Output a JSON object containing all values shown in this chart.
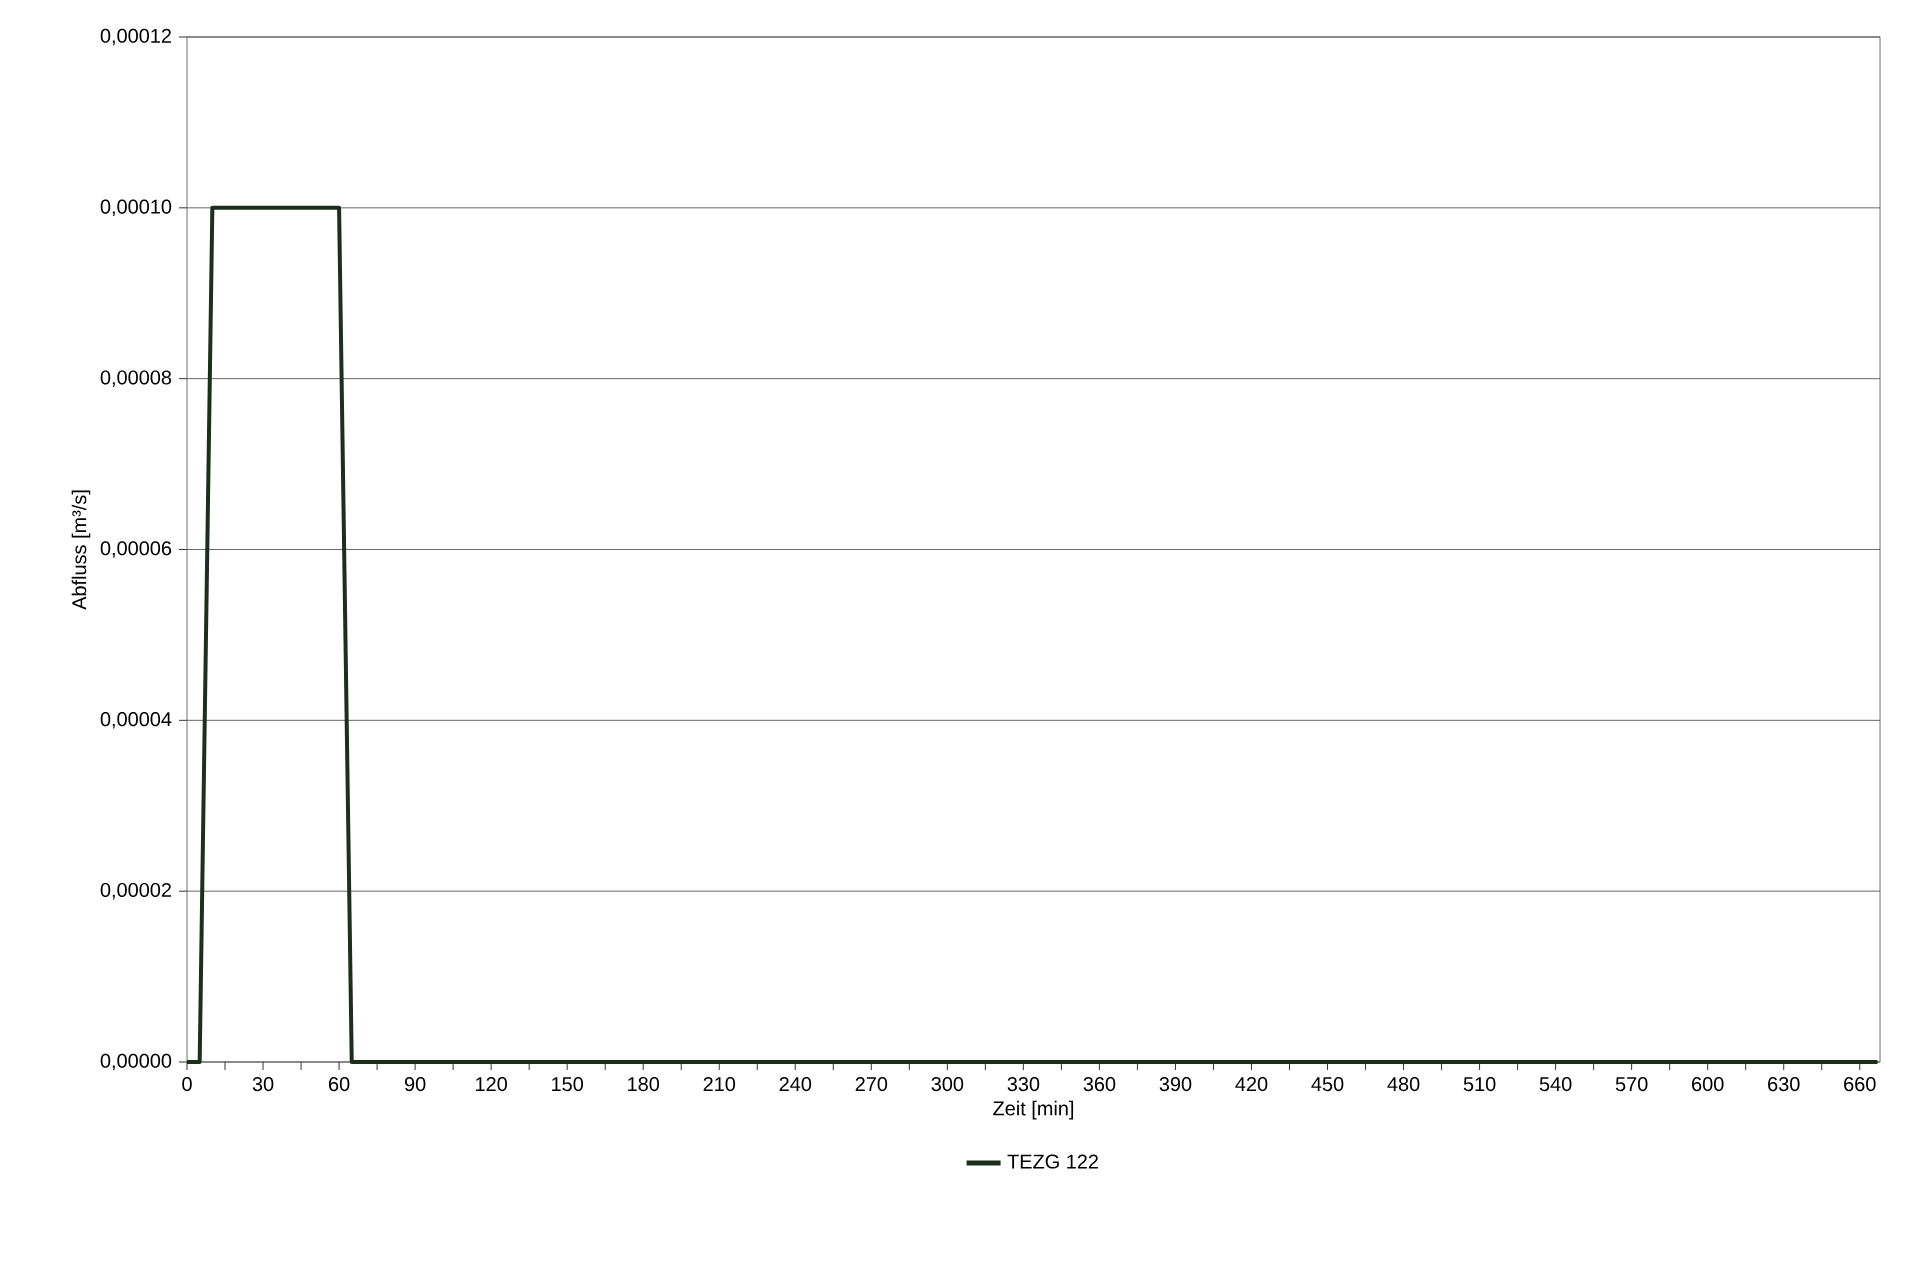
{
  "chart_data": {
    "type": "line",
    "xlabel": "Zeit [min]",
    "ylabel": "Abfluss [m³/s]",
    "series": [
      {
        "name": "TEZG 122",
        "color": "#1c2e1c",
        "x": [
          0,
          5,
          10,
          60,
          65,
          667
        ],
        "values": [
          0,
          0,
          0.0001,
          0.0001,
          0,
          0
        ]
      }
    ],
    "xlim": [
      0,
      668
    ],
    "xticks": [
      0,
      {
        "value": 15,
        "label": null
      },
      30,
      {
        "value": 45,
        "label": null
      },
      60,
      {
        "value": 75,
        "label": null
      },
      90,
      {
        "value": 105,
        "label": null
      },
      120,
      {
        "value": 135,
        "label": null
      },
      150,
      {
        "value": 165,
        "label": null
      },
      180,
      {
        "value": 195,
        "label": null
      },
      210,
      {
        "value": 225,
        "label": null
      },
      240,
      {
        "value": 255,
        "label": null
      },
      270,
      {
        "value": 285,
        "label": null
      },
      300,
      {
        "value": 315,
        "label": null
      },
      330,
      {
        "value": 345,
        "label": null
      },
      360,
      {
        "value": 375,
        "label": null
      },
      390,
      {
        "value": 405,
        "label": null
      },
      420,
      {
        "value": 435,
        "label": null
      },
      450,
      {
        "value": 465,
        "label": null
      },
      480,
      {
        "value": 495,
        "label": null
      },
      510,
      {
        "value": 525,
        "label": null
      },
      540,
      {
        "value": 555,
        "label": null
      },
      570,
      {
        "value": 585,
        "label": null
      },
      600,
      {
        "value": 615,
        "label": null
      },
      630,
      {
        "value": 645,
        "label": null
      },
      660
    ],
    "ylim": [
      0,
      0.00012
    ],
    "yticks": [
      {
        "value": 0,
        "label": "0,00000"
      },
      {
        "value": 2e-05,
        "label": "0,00002"
      },
      {
        "value": 4e-05,
        "label": "0,00004"
      },
      {
        "value": 6e-05,
        "label": "0,00006"
      },
      {
        "value": 8e-05,
        "label": "0,00008"
      },
      {
        "value": 0.0001,
        "label": "0,00010"
      },
      {
        "value": 0.00012,
        "label": "0,00012"
      }
    ],
    "grid": "y",
    "legend": "bottom",
    "marker": "none",
    "line_style": "solid"
  }
}
